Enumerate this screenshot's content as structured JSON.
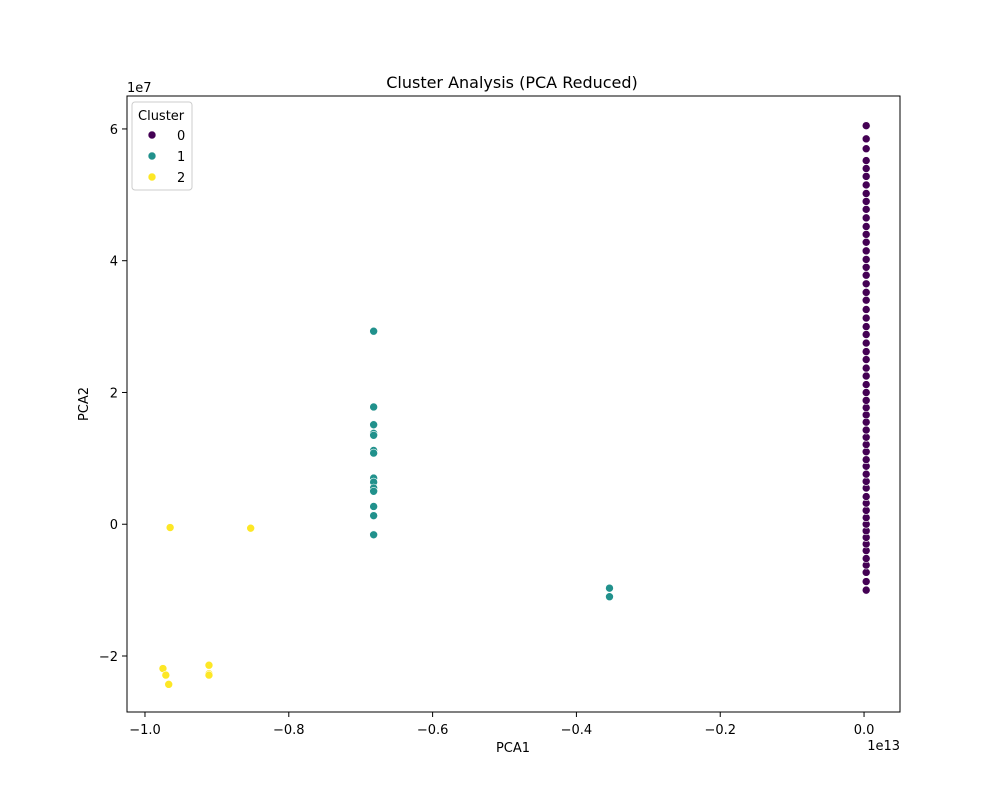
{
  "chart_data": {
    "type": "scatter",
    "title": "Cluster Analysis (PCA Reduced)",
    "xlabel": "PCA1",
    "ylabel": "PCA2",
    "x_offset_label": "1e13",
    "y_offset_label": "1e7",
    "xlim": [
      -1.025,
      0.05
    ],
    "ylim": [
      -2.85,
      6.5
    ],
    "xticks": [
      -1.0,
      -0.8,
      -0.6,
      -0.4,
      -0.2,
      0.0
    ],
    "xtick_labels": [
      "−1.0",
      "−0.8",
      "−0.6",
      "−0.4",
      "−0.2",
      "0.0"
    ],
    "yticks": [
      -2,
      0,
      2,
      4,
      6
    ],
    "ytick_labels": [
      "−2",
      "0",
      "2",
      "4",
      "6"
    ],
    "grid": false,
    "legend": {
      "title": "Cluster",
      "position": "upper-left"
    },
    "series": [
      {
        "name": "0",
        "color": "#440154",
        "points": [
          [
            0.003,
            -1.0
          ],
          [
            0.003,
            -0.87
          ],
          [
            0.003,
            -0.73
          ],
          [
            0.003,
            -0.62
          ],
          [
            0.003,
            -0.52
          ],
          [
            0.003,
            -0.4
          ],
          [
            0.003,
            -0.3
          ],
          [
            0.003,
            -0.2
          ],
          [
            0.003,
            -0.1
          ],
          [
            0.003,
            0.0
          ],
          [
            0.003,
            0.1
          ],
          [
            0.003,
            0.21
          ],
          [
            0.003,
            0.32
          ],
          [
            0.003,
            0.42
          ],
          [
            0.003,
            0.55
          ],
          [
            0.003,
            0.65
          ],
          [
            0.003,
            0.76
          ],
          [
            0.003,
            0.88
          ],
          [
            0.003,
            0.98
          ],
          [
            0.003,
            1.1
          ],
          [
            0.003,
            1.21
          ],
          [
            0.003,
            1.32
          ],
          [
            0.003,
            1.43
          ],
          [
            0.003,
            1.55
          ],
          [
            0.003,
            1.66
          ],
          [
            0.003,
            1.77
          ],
          [
            0.003,
            1.88
          ],
          [
            0.003,
            2.0
          ],
          [
            0.003,
            2.12
          ],
          [
            0.003,
            2.25
          ],
          [
            0.003,
            2.37
          ],
          [
            0.003,
            2.5
          ],
          [
            0.003,
            2.62
          ],
          [
            0.003,
            2.75
          ],
          [
            0.003,
            2.88
          ],
          [
            0.003,
            3.0
          ],
          [
            0.003,
            3.13
          ],
          [
            0.003,
            3.26
          ],
          [
            0.003,
            3.4
          ],
          [
            0.003,
            3.52
          ],
          [
            0.003,
            3.65
          ],
          [
            0.003,
            3.78
          ],
          [
            0.003,
            3.9
          ],
          [
            0.003,
            4.02
          ],
          [
            0.003,
            4.15
          ],
          [
            0.003,
            4.28
          ],
          [
            0.003,
            4.4
          ],
          [
            0.003,
            4.52
          ],
          [
            0.003,
            4.65
          ],
          [
            0.003,
            4.78
          ],
          [
            0.003,
            4.9
          ],
          [
            0.003,
            5.02
          ],
          [
            0.003,
            5.15
          ],
          [
            0.003,
            5.28
          ],
          [
            0.003,
            5.4
          ],
          [
            0.003,
            5.52
          ],
          [
            0.003,
            5.7
          ],
          [
            0.003,
            5.85
          ],
          [
            0.003,
            6.05
          ]
        ]
      },
      {
        "name": "1",
        "color": "#21918c",
        "points": [
          [
            -0.682,
            2.93
          ],
          [
            -0.682,
            1.78
          ],
          [
            -0.682,
            1.51
          ],
          [
            -0.682,
            1.38
          ],
          [
            -0.682,
            1.35
          ],
          [
            -0.682,
            1.12
          ],
          [
            -0.682,
            1.08
          ],
          [
            -0.682,
            0.7
          ],
          [
            -0.682,
            0.64
          ],
          [
            -0.682,
            0.55
          ],
          [
            -0.682,
            0.5
          ],
          [
            -0.682,
            0.27
          ],
          [
            -0.682,
            0.13
          ],
          [
            -0.682,
            -0.16
          ],
          [
            -0.354,
            -0.97
          ],
          [
            -0.354,
            -1.1
          ]
        ]
      },
      {
        "name": "2",
        "color": "#fde725",
        "points": [
          [
            -0.965,
            -0.05
          ],
          [
            -0.853,
            -0.06
          ],
          [
            -0.911,
            -2.14
          ],
          [
            -0.911,
            -2.27
          ],
          [
            -0.911,
            -2.29
          ],
          [
            -0.975,
            -2.19
          ],
          [
            -0.971,
            -2.29
          ],
          [
            -0.967,
            -2.43
          ]
        ]
      }
    ]
  }
}
